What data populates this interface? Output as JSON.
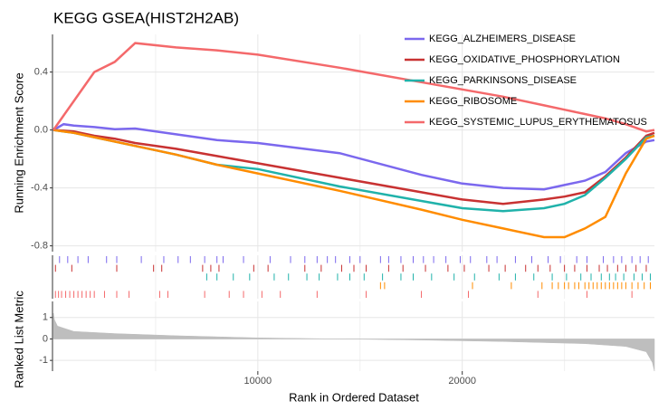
{
  "chart_data": [
    {
      "type": "line",
      "title": "KEGG GSEA(HIST2H2AB)",
      "y_label": "Running Enrichment Score",
      "legend": "top-right",
      "x": [
        0,
        500,
        1000,
        2000,
        3000,
        4000,
        6000,
        8000,
        10000,
        14000,
        18000,
        20000,
        22000,
        24000,
        25000,
        26000,
        27000,
        28000,
        29000,
        29400
      ],
      "xlim": [
        0,
        29400
      ],
      "ylim": [
        -0.84,
        0.66
      ],
      "yticks": [
        -0.8,
        -0.4,
        {
          "value": 0,
          "label": "0.0"
        },
        0.4
      ],
      "grid": true,
      "series": [
        {
          "name": "KEGG_ALZHEIMERS_DISEASE",
          "color": "#7b68ee",
          "values": [
            0,
            0.04,
            0.03,
            0.02,
            0.005,
            0.01,
            -0.03,
            -0.07,
            -0.09,
            -0.16,
            -0.31,
            -0.37,
            -0.4,
            -0.41,
            -0.38,
            -0.35,
            -0.29,
            -0.16,
            -0.08,
            -0.07
          ],
          "hits": [
            300,
            700,
            1200,
            1700,
            2600,
            3100,
            4300,
            5400,
            6100,
            6700,
            7400,
            8000,
            8300,
            9300,
            10600,
            11600,
            12300,
            12900,
            13400,
            13800,
            14500,
            15000,
            16000,
            16400,
            17000,
            17600,
            18100,
            18600,
            19200,
            19900,
            20400,
            21200,
            21700,
            22600,
            23400,
            24200,
            24800,
            25600,
            26100,
            26900,
            27400,
            27800,
            28300,
            28700,
            29100
          ]
        },
        {
          "name": "KEGG_OXIDATIVE_PHOSPHORYLATION",
          "color": "#c83232",
          "values": [
            0,
            -0.005,
            -0.01,
            -0.04,
            -0.06,
            -0.09,
            -0.13,
            -0.18,
            -0.23,
            -0.33,
            -0.43,
            -0.48,
            -0.51,
            -0.48,
            -0.46,
            -0.43,
            -0.32,
            -0.19,
            -0.04,
            -0.02
          ],
          "hits": [
            100,
            900,
            3100,
            4900,
            5300,
            7300,
            7700,
            8100,
            9800,
            10500,
            12300,
            13100,
            14100,
            14700,
            15300,
            16400,
            17100,
            18200,
            19300,
            20100,
            21300,
            22100,
            23100,
            23700,
            24300,
            25000,
            25500,
            26100,
            26700,
            27100,
            27600,
            28000,
            28500,
            29000
          ]
        },
        {
          "name": "KEGG_PARKINSONS_DISEASE",
          "color": "#20b2aa",
          "values": [
            0,
            -0.01,
            -0.02,
            -0.05,
            -0.08,
            -0.11,
            -0.17,
            -0.24,
            -0.27,
            -0.39,
            -0.49,
            -0.54,
            -0.56,
            -0.54,
            -0.51,
            -0.45,
            -0.33,
            -0.2,
            -0.05,
            -0.04
          ],
          "hits": [
            7500,
            8000,
            8800,
            9600,
            10800,
            11500,
            12400,
            13000,
            13900,
            14500,
            15200,
            16100,
            17000,
            17600,
            18500,
            19600,
            20600,
            21800,
            22600,
            23500,
            24400,
            25100,
            25800,
            26300,
            26800,
            27200,
            27500,
            27900,
            28400,
            28800,
            29200
          ]
        },
        {
          "name": "KEGG_RIBOSOME",
          "color": "#ff8c00",
          "values": [
            0,
            -0.01,
            -0.02,
            -0.05,
            -0.08,
            -0.11,
            -0.17,
            -0.24,
            -0.3,
            -0.42,
            -0.55,
            -0.62,
            -0.68,
            -0.74,
            -0.74,
            -0.68,
            -0.6,
            -0.3,
            -0.06,
            -0.04
          ],
          "hits": [
            16000,
            16200,
            20500,
            22400,
            23900,
            24400,
            24700,
            25000,
            25200,
            25500,
            25700,
            26000,
            26200,
            26400,
            26600,
            26800,
            27000,
            27200,
            27400,
            27600,
            27800,
            28000,
            28300,
            28600,
            28900,
            29200
          ]
        },
        {
          "name": "KEGG_SYSTEMIC_LUPUS_ERYTHEMATOSUS",
          "color": "#f4696b",
          "values": [
            0,
            0.1,
            0.2,
            0.4,
            0.47,
            0.6,
            0.57,
            0.55,
            0.52,
            0.43,
            0.33,
            0.28,
            0.23,
            0.17,
            0.14,
            0.11,
            0.08,
            0.04,
            -0.01,
            0
          ],
          "hits": [
            100,
            250,
            400,
            600,
            800,
            1000,
            1200,
            1400,
            1600,
            1800,
            2000,
            2500,
            3100,
            3700,
            5200,
            5600,
            7400,
            8600,
            9300,
            10200,
            11100,
            12900,
            15300,
            18000,
            20300,
            23700,
            26100,
            28300
          ]
        }
      ]
    },
    {
      "type": "area",
      "y_label": "Ranked List Metric",
      "x_label": "Rank in Ordered Dataset",
      "color": "#bebebe",
      "x": [
        0,
        50,
        200,
        1000,
        3000,
        6000,
        10000,
        14000,
        18000,
        22000,
        26000,
        28000,
        29000,
        29300,
        29400
      ],
      "values": [
        1.2,
        0.9,
        0.6,
        0.35,
        0.25,
        0.15,
        0.05,
        0,
        -0.05,
        -0.12,
        -0.22,
        -0.35,
        -0.6,
        -1.1,
        -1.5
      ],
      "xlim": [
        0,
        29400
      ],
      "ylim": [
        -1.5,
        1.75
      ],
      "yticks": [
        -1,
        0,
        1
      ],
      "xticks": [
        10000,
        20000
      ],
      "x_minor_ticks": [
        5000,
        15000,
        25000
      ],
      "grid": true
    }
  ]
}
